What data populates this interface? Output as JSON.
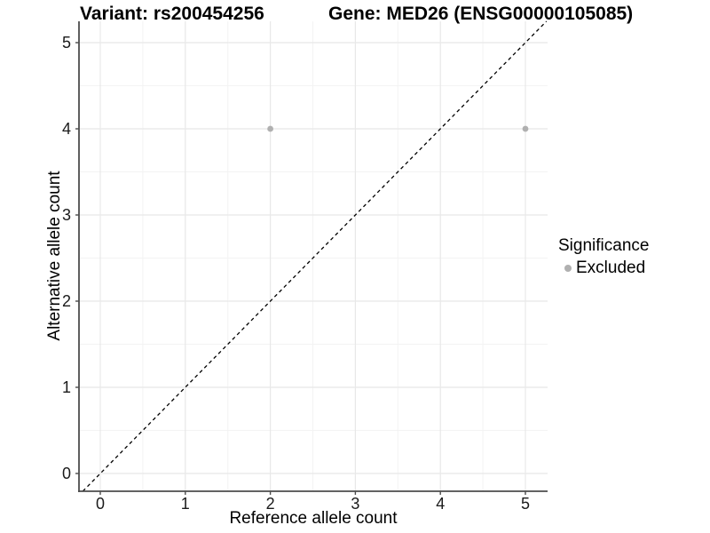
{
  "chart_data": {
    "type": "scatter",
    "titles": {
      "left": "Variant: rs200454256",
      "right": "Gene: MED26 (ENSG00000105085)"
    },
    "xlabel": "Reference allele count",
    "ylabel": "Alternative allele count",
    "xlim": [
      -0.25,
      5.25
    ],
    "ylim": [
      -0.25,
      5.25
    ],
    "x_ticks": [
      0,
      1,
      2,
      3,
      4,
      5
    ],
    "y_ticks": [
      0,
      1,
      2,
      3,
      4,
      5
    ],
    "x_minor_breaks": [
      0.5,
      1.5,
      2.5,
      3.5,
      4.5
    ],
    "y_minor_breaks": [
      0.5,
      1.5,
      2.5,
      3.5,
      4.5
    ],
    "grid": true,
    "series": [
      {
        "name": "Excluded",
        "color": "#b0b0b0",
        "points": [
          {
            "x": 2,
            "y": 4
          },
          {
            "x": 5,
            "y": 4
          }
        ]
      }
    ],
    "reference_line": {
      "slope": 1,
      "intercept": 0,
      "style": "dashed",
      "color": "#000000"
    },
    "legend": {
      "title": "Significance",
      "position": "right",
      "entries": [
        {
          "label": "Excluded",
          "color": "#b0b0b0"
        }
      ]
    },
    "colors": {
      "background": "#ffffff",
      "grid_major": "#e8e8e8",
      "grid_minor": "#f3f3f3",
      "axis": "#4d4d4d",
      "tick_label": "#1a1a1a",
      "point": "#b0b0b0"
    }
  }
}
